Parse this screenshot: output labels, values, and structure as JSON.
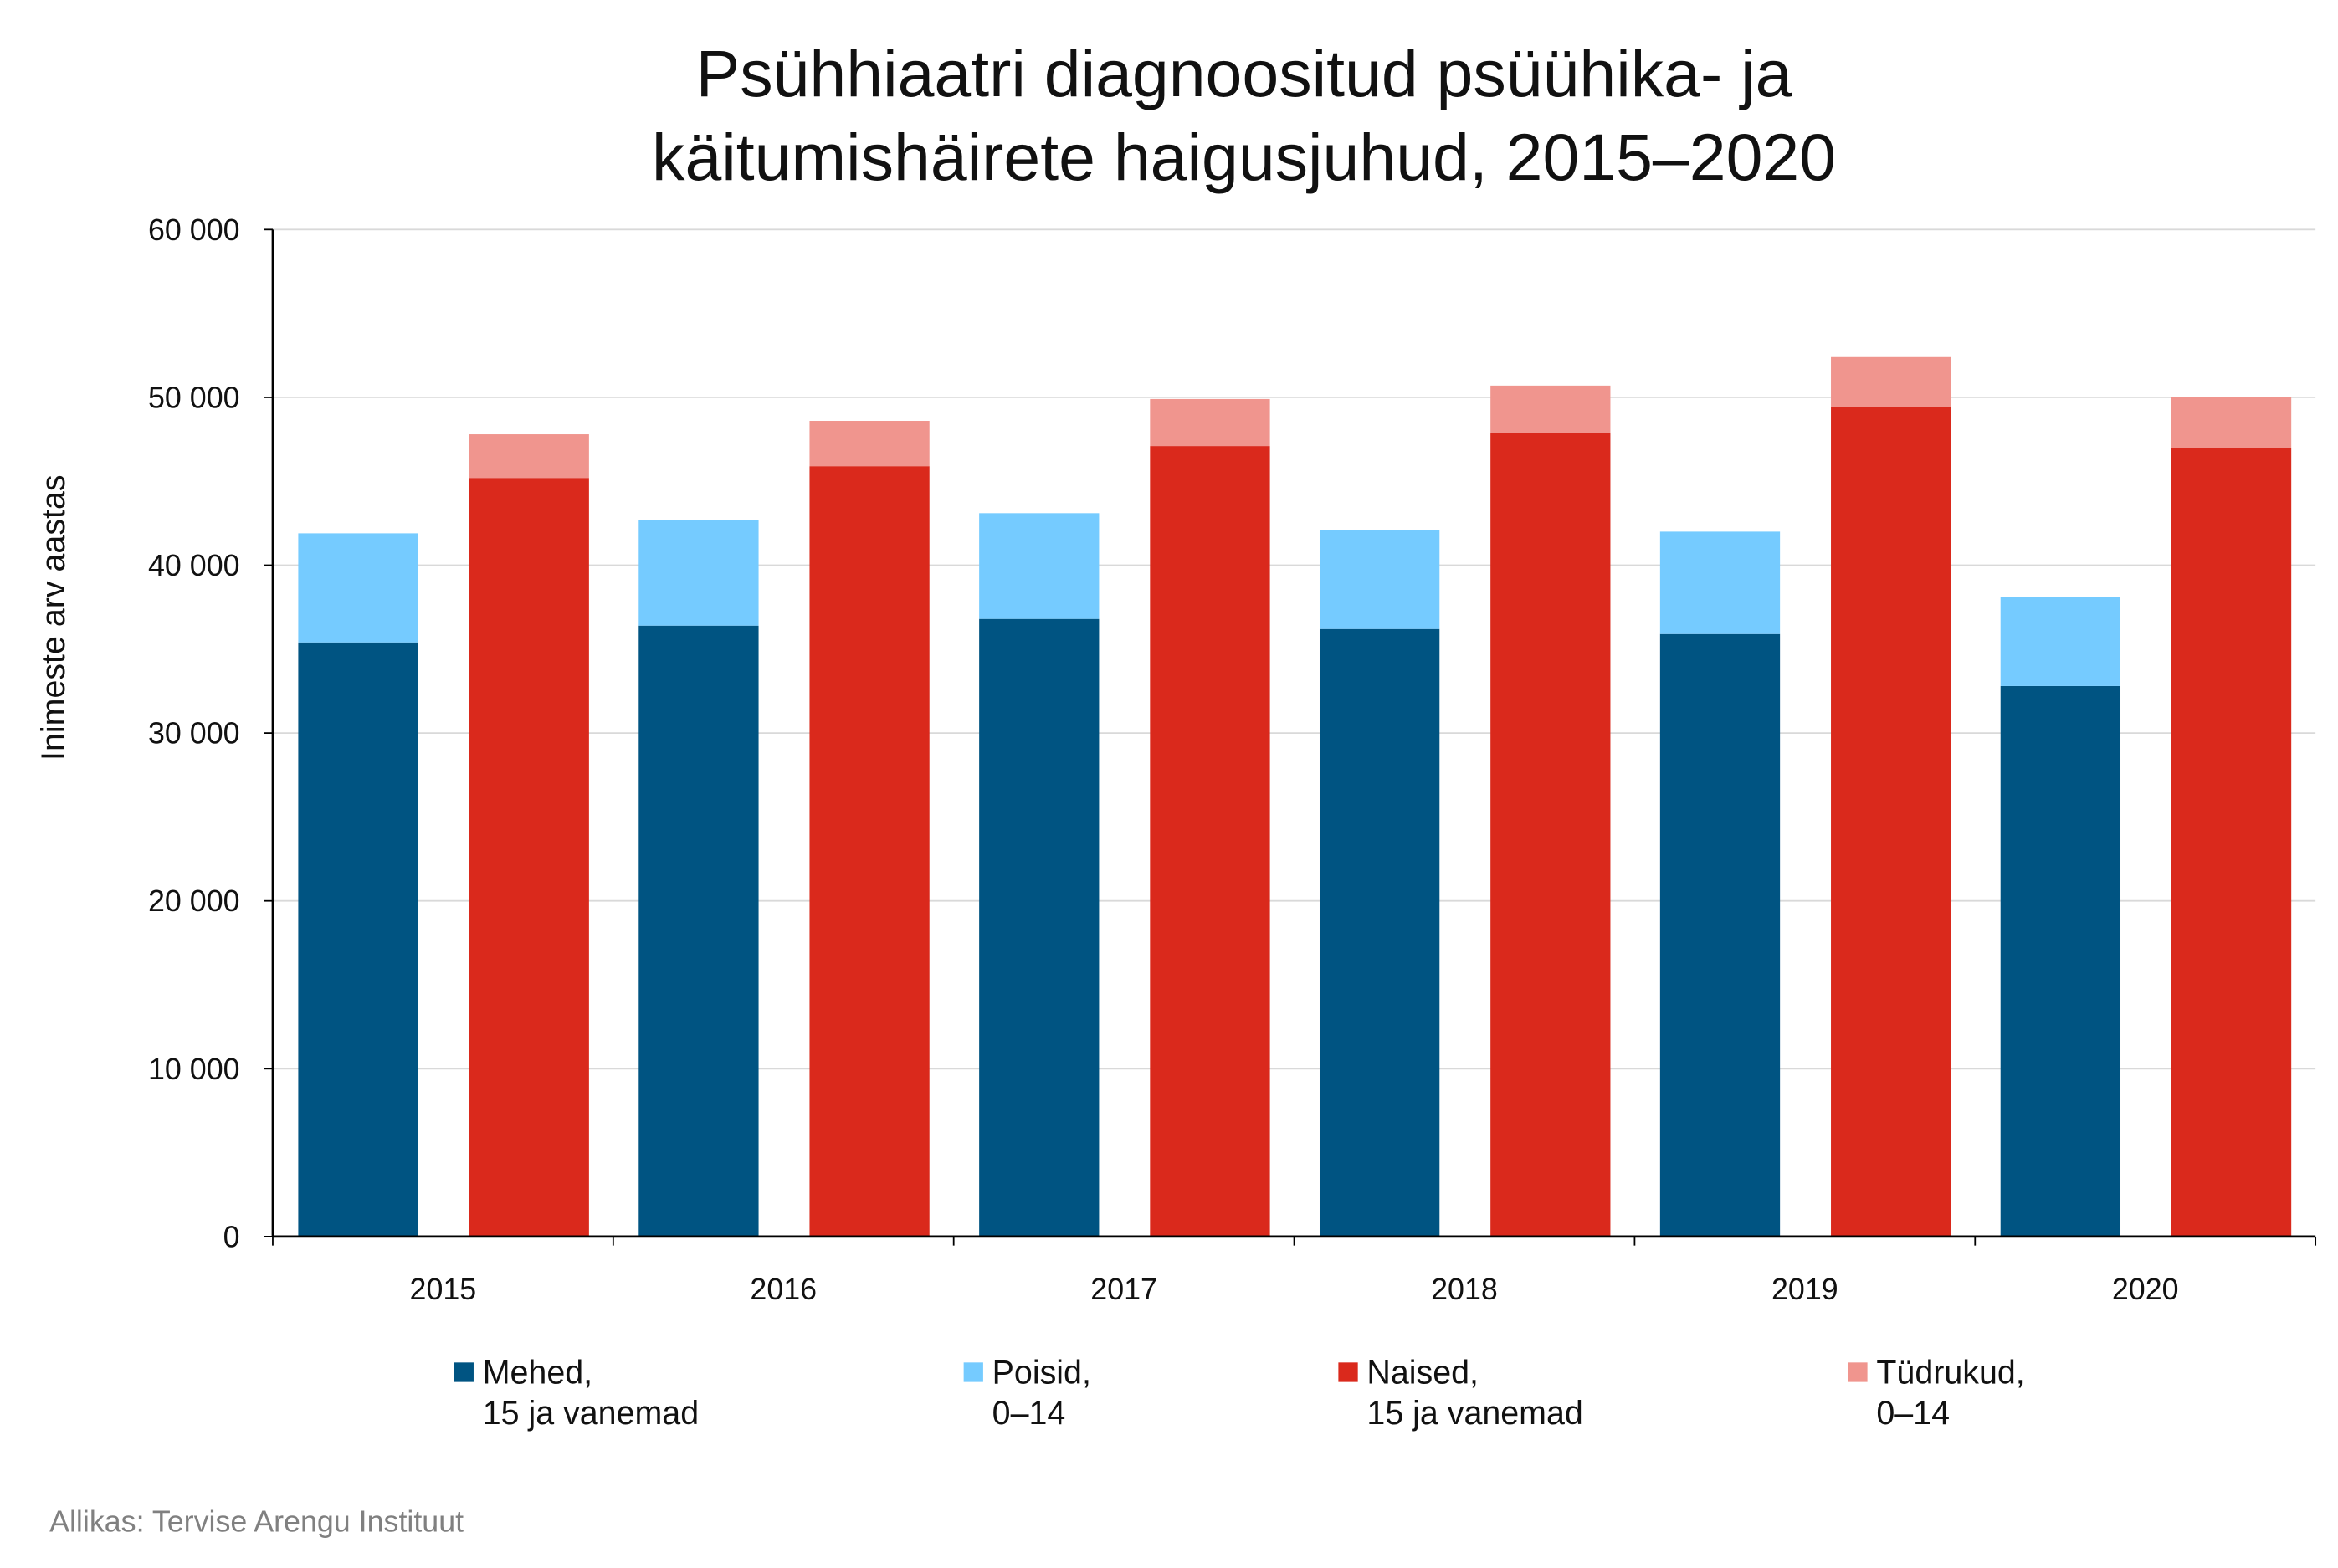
{
  "chart_data": {
    "type": "bar",
    "stacked": true,
    "title_lines": [
      "Psühhiaatri diagnoositud psüühika- ja",
      "käitumishäirete haigusjuhud, 2015–2020"
    ],
    "ylabel": "Inimeste arv aastas",
    "xlabel": "",
    "ylim": [
      0,
      60000
    ],
    "yticks": [
      0,
      10000,
      20000,
      30000,
      40000,
      50000,
      60000
    ],
    "ytick_labels": [
      "0",
      "10 000",
      "20 000",
      "30 000",
      "40 000",
      "50 000",
      "60 000"
    ],
    "grid": true,
    "categories": [
      "2015",
      "2016",
      "2017",
      "2018",
      "2019",
      "2020"
    ],
    "stacks": [
      {
        "stack": "male",
        "series": [
          {
            "name": "Mehed, 15 ja vanemad",
            "color": "#005482",
            "values": [
              35400,
              36400,
              36800,
              36200,
              35900,
              32800
            ]
          },
          {
            "name": "Poisid, 0–14",
            "color": "#75CBFF",
            "values": [
              6500,
              6300,
              6300,
              5900,
              6100,
              5300
            ]
          }
        ]
      },
      {
        "stack": "female",
        "series": [
          {
            "name": "Naised, 15 ja vanemad",
            "color": "#DA291C",
            "values": [
              45200,
              45900,
              47100,
              47900,
              49400,
              47000
            ]
          },
          {
            "name": "Tüdrukud, 0–14",
            "color": "#F0958E",
            "values": [
              2600,
              2700,
              2800,
              2800,
              3000,
              3000
            ]
          }
        ]
      }
    ],
    "legend": {
      "placement": "bottom",
      "entries": [
        {
          "line1": "Mehed,",
          "line2": "15 ja vanemad",
          "color": "#005482"
        },
        {
          "line1": "Poisid,",
          "line2": "0–14",
          "color": "#75CBFF"
        },
        {
          "line1": "Naised,",
          "line2": "15 ja vanemad",
          "color": "#DA291C"
        },
        {
          "line1": "Tüdrukud,",
          "line2": "0–14",
          "color": "#F0958E"
        }
      ]
    },
    "source": "Allikas: Tervise Arengu Instituut"
  }
}
